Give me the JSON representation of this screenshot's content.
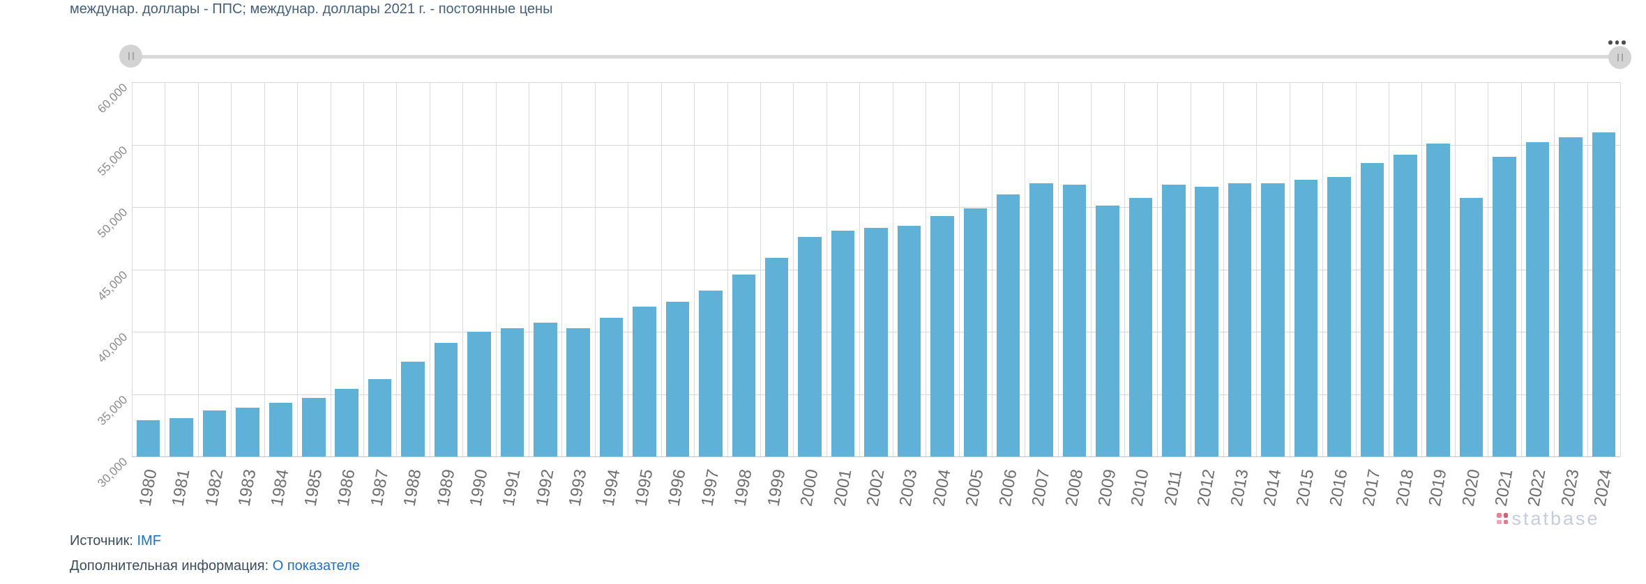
{
  "title": "междунар. доллары - ППС; междунар. доллары 2021 г. - постоянные цены",
  "slider": {
    "left_handle": "range-start",
    "right_handle": "range-end",
    "menu": "options"
  },
  "chart_data": {
    "type": "bar",
    "title": "междунар. доллары - ППС; междунар. доллары 2021 г. - постоянные цены",
    "categories": [
      "1980",
      "1981",
      "1982",
      "1983",
      "1984",
      "1985",
      "1986",
      "1987",
      "1988",
      "1989",
      "1990",
      "1991",
      "1992",
      "1993",
      "1994",
      "1995",
      "1996",
      "1997",
      "1998",
      "1999",
      "2000",
      "2001",
      "2002",
      "2003",
      "2004",
      "2005",
      "2006",
      "2007",
      "2008",
      "2009",
      "2010",
      "2011",
      "2012",
      "2013",
      "2014",
      "2015",
      "2016",
      "2017",
      "2018",
      "2019",
      "2020",
      "2021",
      "2022",
      "2023",
      "2024"
    ],
    "values": [
      32900,
      33100,
      33700,
      33900,
      34300,
      34700,
      35400,
      36200,
      37600,
      39100,
      40000,
      40300,
      40700,
      40300,
      41100,
      42000,
      42400,
      43300,
      44600,
      45900,
      47600,
      48100,
      48300,
      48500,
      49300,
      49900,
      51000,
      51900,
      51800,
      50100,
      50700,
      51800,
      51600,
      51900,
      51900,
      52200,
      52400,
      53500,
      54200,
      55100,
      50700,
      54000,
      55200,
      55600,
      56000
    ],
    "ylim": [
      30000,
      60000
    ],
    "yticks": [
      30000,
      35000,
      40000,
      45000,
      50000,
      55000,
      60000
    ],
    "ytick_labels": [
      "30,000",
      "35,000",
      "40,000",
      "45,000",
      "50,000",
      "55,000",
      "60,000"
    ],
    "xlabel": "",
    "ylabel": "",
    "grid": true,
    "legend": "none",
    "bar_color": "#60b1d8"
  },
  "watermark": {
    "text": "statbase"
  },
  "footer": {
    "source_label": "Источник:",
    "source_link": "IMF",
    "info_label": "Дополнительная информация:",
    "info_link": "О показателе"
  },
  "colors": {
    "bar": "#60b1d8",
    "title_text": "#44607c",
    "link": "#1e6fd0",
    "gridline": "#d7d7d7",
    "axis_label": "#6e6e6e",
    "watermark_text": "#c6cdda",
    "watermark_dots": "#e05a73"
  }
}
